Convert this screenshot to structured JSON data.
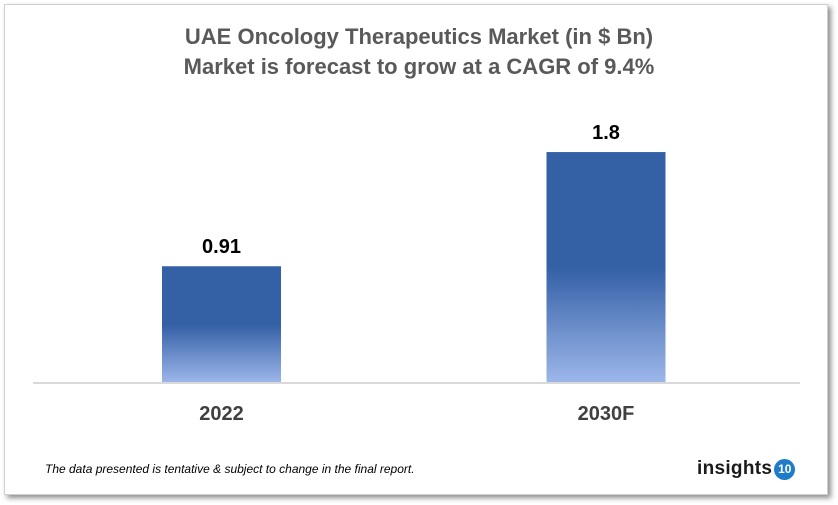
{
  "chart_data": {
    "type": "bar",
    "title": "UAE Oncology Therapeutics Market (in $ Bn)",
    "subtitle": "Market is forecast to grow at a CAGR of 9.4%",
    "categories": [
      "2022",
      "2030F"
    ],
    "values": [
      0.91,
      1.8
    ],
    "value_labels": [
      "0.91",
      "1.8"
    ],
    "xlabel": "",
    "ylabel": "",
    "ylim": [
      0,
      2.0
    ],
    "grid": false,
    "colors": {
      "bar_top": "#3460a6",
      "bar_bottom": "#9db7ea",
      "axis": "#d9d9d9"
    }
  },
  "footnote": "The data presented is tentative & subject to change in the final report.",
  "logo": {
    "word": "insights",
    "badge": "10"
  }
}
